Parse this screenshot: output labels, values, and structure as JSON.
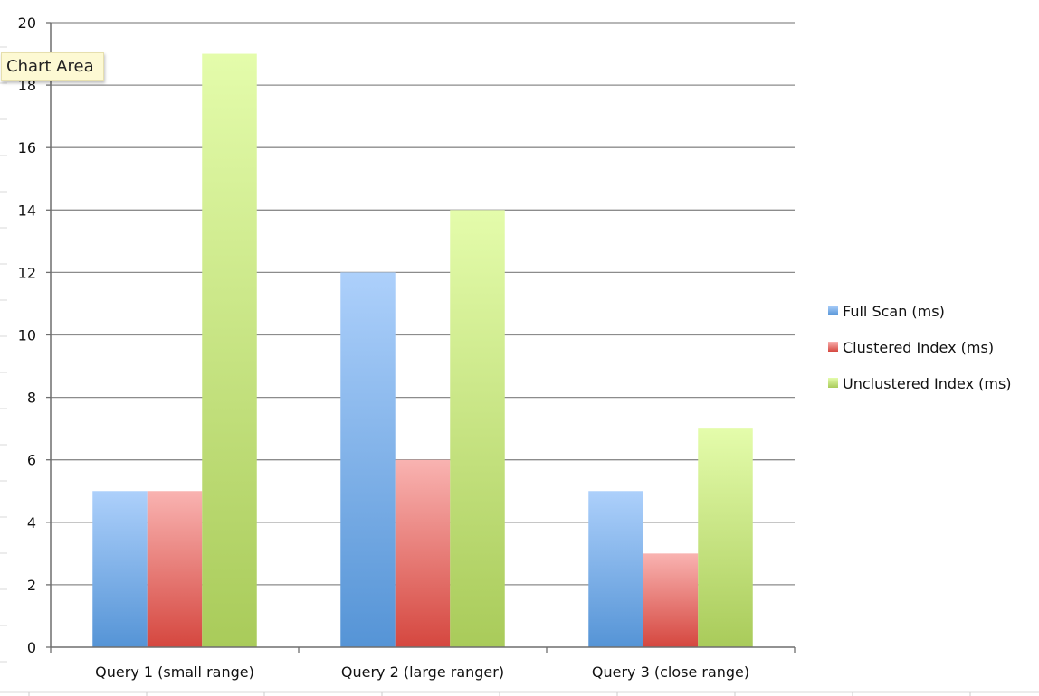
{
  "tooltip": {
    "text": "Chart Area"
  },
  "colors": {
    "full_scan": [
      "#add0fb",
      "#5594d6"
    ],
    "clustered": [
      "#f9b3b1",
      "#d5473f"
    ],
    "unclustered": [
      "#e4fcab",
      "#a9cb5a"
    ]
  },
  "chart_data": {
    "type": "bar",
    "title": "",
    "xlabel": "",
    "ylabel": "",
    "categories": [
      "Query 1 (small range)",
      "Query 2 (large ranger)",
      "Query 3 (close range)"
    ],
    "series": [
      {
        "name": "Full Scan (ms)",
        "values": [
          5,
          12,
          5
        ],
        "color_key": "full_scan"
      },
      {
        "name": "Clustered Index (ms)",
        "values": [
          5,
          6,
          3
        ],
        "color_key": "clustered"
      },
      {
        "name": "Unclustered Index (ms)",
        "values": [
          19,
          14,
          7
        ],
        "color_key": "unclustered"
      }
    ],
    "ylim": [
      0,
      20
    ],
    "yticks": [
      0,
      2,
      4,
      6,
      8,
      10,
      12,
      14,
      16,
      18,
      20
    ],
    "grid": true,
    "legend": "right"
  }
}
